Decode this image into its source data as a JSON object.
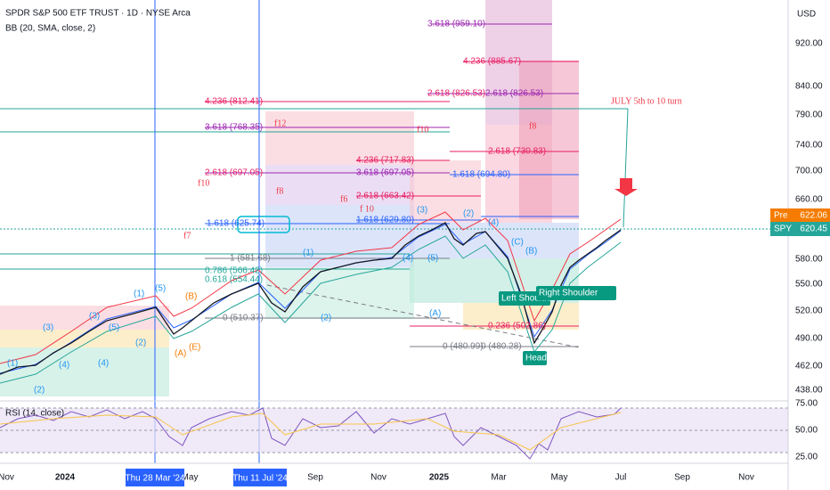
{
  "header": {
    "title": "SPDR S&P 500 ETF TRUST · 1D · NYSE Arca",
    "indicator": "BB (20, SMA, close, 2)",
    "currency": "USD",
    "rsi_label": "RSI (14, close)"
  },
  "price_axis": [
    "920.00",
    "840.00",
    "790.00",
    "740.00",
    "700.00",
    "660.00",
    "580.00",
    "550.00",
    "520.00",
    "490.00",
    "462.00",
    "438.00"
  ],
  "rsi_axis": [
    "75.00",
    "50.00",
    "25.00"
  ],
  "time_axis": [
    "Nov",
    "2024",
    "May",
    "Sep",
    "Nov",
    "2025",
    "Mar",
    "May",
    "Jul",
    "Sep",
    "Nov"
  ],
  "crosshair_dates": [
    "Thu 28 Mar '24",
    "Thu 11 Jul '24"
  ],
  "price_tags": [
    {
      "label": "Pre",
      "value": "622.06"
    },
    {
      "label": "SPY",
      "value": "620.45"
    }
  ],
  "annotations": [
    "JULY 5th to 10 turn",
    "f12",
    "f10",
    "f10",
    "f8",
    "f8",
    "f7",
    "f6",
    "f 10"
  ],
  "fib_levels": [
    "3.618 (959.10)",
    "4.236 (885.67)",
    "2.618 (826.53)",
    "2.618 (826.53)",
    "4.236 (812.41)",
    "3.618 (768.35)",
    "2.618 (730.83)",
    "4.236 (717.83)",
    "2.618 (697.05)",
    "3.618 (697.05)",
    "1.618 (694.80)",
    "2.618 (663.42)",
    "1.618 (629.80)",
    "1.618 (625.74)",
    "1 (581.68)",
    "0.786 (566.42)",
    "0.618 (554.44)",
    "0 (510.37)",
    "0.236 (502.86)",
    "0 (480.99)",
    "0 (480.28)"
  ],
  "waves": [
    "(1)",
    "(2)",
    "(3)",
    "(4)",
    "(5)",
    "(1)",
    "(2)",
    "(3)",
    "(4)",
    "(5)",
    "(B)",
    "(A)",
    "(E)",
    "(1)",
    "(2)",
    "(3)",
    "(4)",
    "(5)",
    "(2)",
    "(4)",
    "(C)",
    "(B)",
    "(A)"
  ],
  "pattern_labels": [
    "Left Shoulder",
    "Right Shoulder",
    "Head"
  ]
}
